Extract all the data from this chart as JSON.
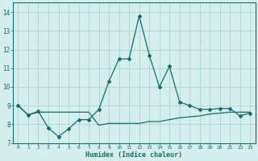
{
  "xlabel": "Humidex (Indice chaleur)",
  "bg_color": "#d4eeec",
  "grid_color": "#b0d4d0",
  "line_color": "#1a6b6b",
  "xlim": [
    -0.5,
    23.5
  ],
  "ylim": [
    7,
    14.5
  ],
  "yticks": [
    7,
    8,
    9,
    10,
    11,
    12,
    13,
    14
  ],
  "xticks": [
    0,
    1,
    2,
    3,
    4,
    5,
    6,
    7,
    8,
    9,
    10,
    11,
    12,
    13,
    14,
    15,
    16,
    17,
    18,
    19,
    20,
    21,
    22,
    23
  ],
  "curve1_x": [
    0,
    1,
    2,
    3,
    4,
    5,
    6,
    7,
    8,
    9,
    10,
    11,
    12,
    13,
    14,
    15,
    16,
    17,
    18,
    19,
    20,
    21,
    22,
    23
  ],
  "curve1_y": [
    9.0,
    8.5,
    8.7,
    7.8,
    7.35,
    7.75,
    8.25,
    8.25,
    8.8,
    10.3,
    11.5,
    11.5,
    13.8,
    11.7,
    10.0,
    11.1,
    9.2,
    9.0,
    8.8,
    8.8,
    8.85,
    8.85,
    8.45,
    8.6
  ],
  "curve2_x": [
    0,
    1,
    2,
    3,
    4,
    5,
    6,
    7,
    8,
    9,
    10,
    11,
    12,
    13,
    14,
    15,
    16,
    17,
    18,
    19,
    20,
    21,
    22,
    23
  ],
  "curve2_y": [
    9.0,
    8.5,
    8.65,
    8.65,
    8.65,
    8.65,
    8.65,
    8.65,
    7.95,
    8.05,
    8.05,
    8.05,
    8.05,
    8.15,
    8.15,
    8.25,
    8.35,
    8.4,
    8.45,
    8.55,
    8.6,
    8.65,
    8.65,
    8.65
  ]
}
